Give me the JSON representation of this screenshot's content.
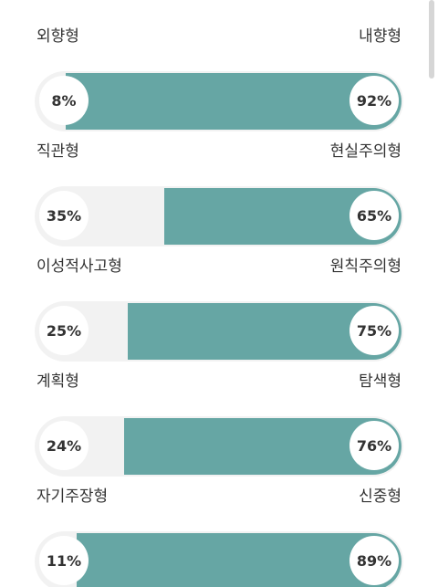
{
  "colors": {
    "fill": "#66a6a4",
    "track": "#f2f2f2",
    "text": "#333333"
  },
  "traits": [
    {
      "left_label": "외향형",
      "right_label": "내향형",
      "left_pct": "8%",
      "right_pct": "92%",
      "fill_fraction": 0.92
    },
    {
      "left_label": "직관형",
      "right_label": "현실주의형",
      "left_pct": "35%",
      "right_pct": "65%",
      "fill_fraction": 0.65
    },
    {
      "left_label": "이성적사고형",
      "right_label": "원칙주의형",
      "left_pct": "25%",
      "right_pct": "75%",
      "fill_fraction": 0.75
    },
    {
      "left_label": "계획형",
      "right_label": "탐색형",
      "left_pct": "24%",
      "right_pct": "76%",
      "fill_fraction": 0.76
    },
    {
      "left_label": "자기주장형",
      "right_label": "신중형",
      "left_pct": "11%",
      "right_pct": "89%",
      "fill_fraction": 0.89
    }
  ]
}
